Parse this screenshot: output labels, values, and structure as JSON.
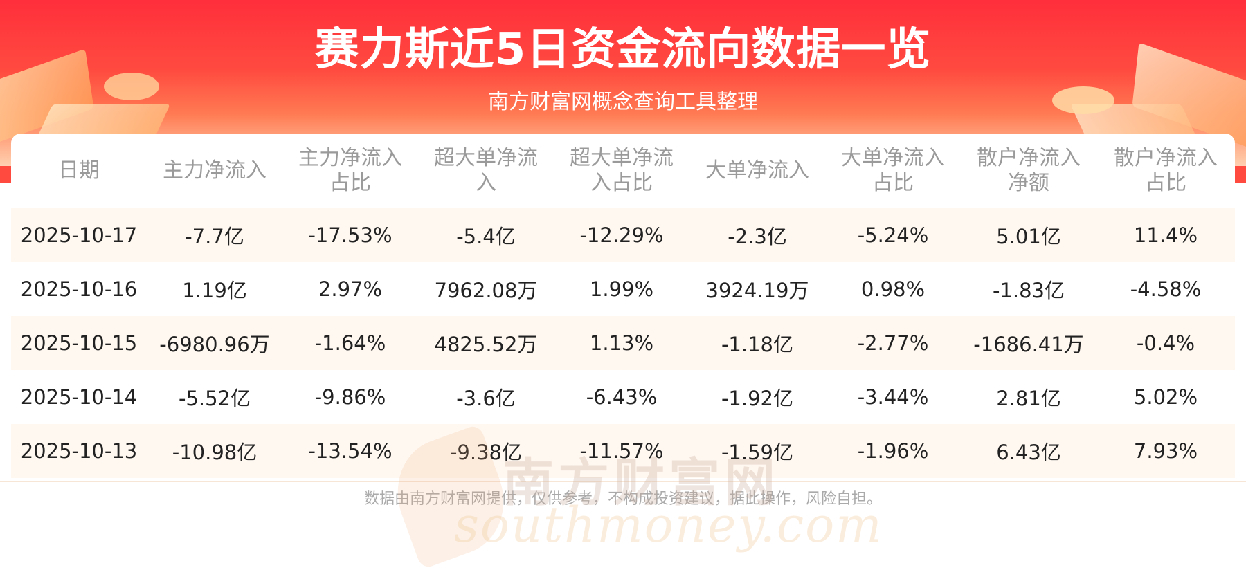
{
  "header": {
    "title": "赛力斯近5日资金流向数据一览",
    "subtitle": "南方财富网概念查询工具整理"
  },
  "table": {
    "columns": [
      [
        "日期"
      ],
      [
        "主力净流入"
      ],
      [
        "主力净流入",
        "占比"
      ],
      [
        "超大单净流",
        "入"
      ],
      [
        "超大单净流",
        "入占比"
      ],
      [
        "大单净流入"
      ],
      [
        "大单净流入",
        "占比"
      ],
      [
        "散户净流入",
        "净额"
      ],
      [
        "散户净流入",
        "占比"
      ]
    ],
    "rows": [
      [
        "2025-10-17",
        "-7.7亿",
        "-17.53%",
        "-5.4亿",
        "-12.29%",
        "-2.3亿",
        "-5.24%",
        "5.01亿",
        "11.4%"
      ],
      [
        "2025-10-16",
        "1.19亿",
        "2.97%",
        "7962.08万",
        "1.99%",
        "3924.19万",
        "0.98%",
        "-1.83亿",
        "-4.58%"
      ],
      [
        "2025-10-15",
        "-6980.96万",
        "-1.64%",
        "4825.52万",
        "1.13%",
        "-1.18亿",
        "-2.77%",
        "-1686.41万",
        "-0.4%"
      ],
      [
        "2025-10-14",
        "-5.52亿",
        "-9.86%",
        "-3.6亿",
        "-6.43%",
        "-1.92亿",
        "-3.44%",
        "2.81亿",
        "5.02%"
      ],
      [
        "2025-10-13",
        "-10.98亿",
        "-13.54%",
        "-9.38亿",
        "-11.57%",
        "-1.59亿",
        "-1.96%",
        "6.43亿",
        "7.93%"
      ]
    ]
  },
  "watermark": {
    "cn": "南方财富网",
    "en": "southmoney.com"
  },
  "footer": {
    "disclaimer": "数据由南方财富网提供，仅供参考，不构成投资建议，据此操作，风险自担。"
  },
  "colors": {
    "header_red": "#ff2f3b",
    "row_stripe": "#fff8f1",
    "header_text": "#9a9a9a"
  }
}
